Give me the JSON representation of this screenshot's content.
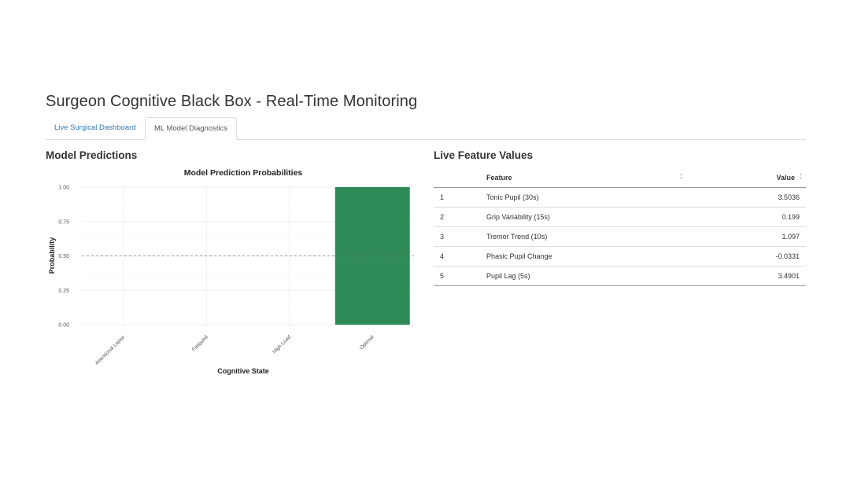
{
  "app_title": "Surgeon Cognitive Black Box - Real-Time Monitoring",
  "tabs": [
    {
      "label": "Live Surgical Dashboard",
      "active": false
    },
    {
      "label": "ML Model Diagnostics",
      "active": true
    }
  ],
  "predictions": {
    "heading": "Model Predictions",
    "chart_data": {
      "type": "bar",
      "title": "Model Prediction Probabilities",
      "xlabel": "Cognitive State",
      "ylabel": "Probability",
      "categories": [
        "Attentional Lapse",
        "Fatigued",
        "High Load",
        "Optimal"
      ],
      "values": [
        0,
        0,
        0,
        1.0
      ],
      "ylim": [
        0,
        1
      ],
      "yticks": [
        "0.00",
        "0.25",
        "0.50",
        "0.75",
        "1.00"
      ],
      "reference_line": 0.5,
      "bar_color": "#2e8b57",
      "grid": true
    }
  },
  "features": {
    "heading": "Live Feature Values",
    "columns": [
      "",
      "Feature",
      "Value"
    ],
    "sort_icons": [
      "sort-arrows-icon",
      "sort-arrows-icon"
    ],
    "rows": [
      {
        "index": "1",
        "feature": "Tonic Pupil (30s)",
        "value": "3.5036"
      },
      {
        "index": "2",
        "feature": "Grip Variability (15s)",
        "value": "0.199"
      },
      {
        "index": "3",
        "feature": "Tremor Trend (10s)",
        "value": "1.097"
      },
      {
        "index": "4",
        "feature": "Phasic Pupil Change",
        "value": "-0.0331"
      },
      {
        "index": "5",
        "feature": "Pupil Lag (5s)",
        "value": "3.4901"
      }
    ]
  },
  "colors": {
    "accent_link": "#337ab7",
    "bar": "#2e8b57"
  }
}
